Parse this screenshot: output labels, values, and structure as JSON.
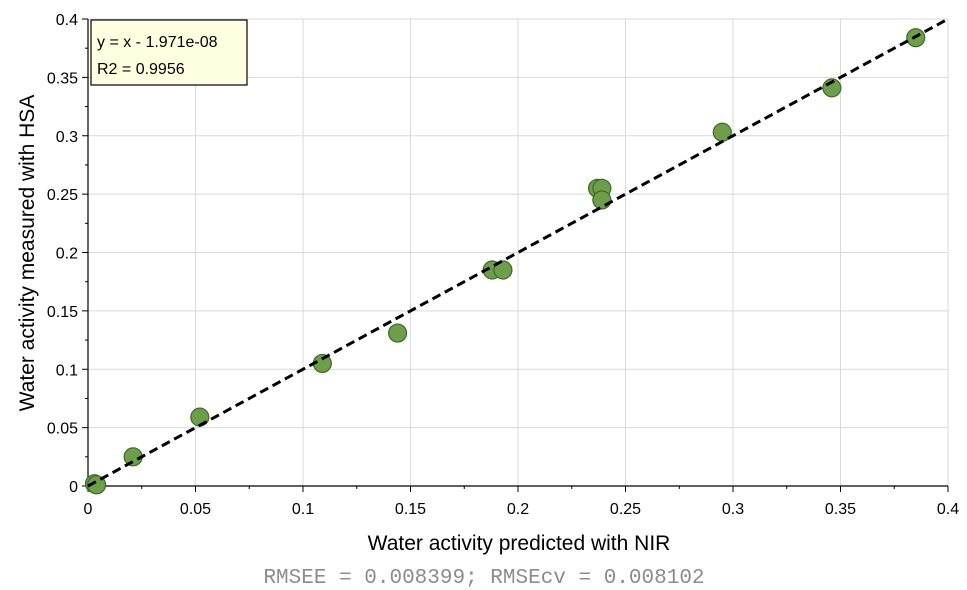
{
  "chart_data": {
    "type": "scatter",
    "xlabel": "Water activity predicted with NIR",
    "ylabel": "Water activity measured with HSA",
    "xlim": [
      0,
      0.4
    ],
    "ylim": [
      0,
      0.4
    ],
    "x_ticks": [
      "0",
      "0.05",
      "0.1",
      "0.15",
      "0.2",
      "0.25",
      "0.3",
      "0.35",
      "0.4"
    ],
    "y_ticks": [
      "0",
      "0.05",
      "0.1",
      "0.15",
      "0.2",
      "0.25",
      "0.3",
      "0.35",
      "0.4"
    ],
    "grid": true,
    "points": [
      {
        "x": 0.003,
        "y": 0.002
      },
      {
        "x": 0.004,
        "y": 0.001
      },
      {
        "x": 0.021,
        "y": 0.025
      },
      {
        "x": 0.052,
        "y": 0.059
      },
      {
        "x": 0.109,
        "y": 0.105
      },
      {
        "x": 0.144,
        "y": 0.131
      },
      {
        "x": 0.188,
        "y": 0.185
      },
      {
        "x": 0.193,
        "y": 0.185
      },
      {
        "x": 0.237,
        "y": 0.255
      },
      {
        "x": 0.239,
        "y": 0.255
      },
      {
        "x": 0.239,
        "y": 0.245
      },
      {
        "x": 0.295,
        "y": 0.303
      },
      {
        "x": 0.346,
        "y": 0.341
      },
      {
        "x": 0.385,
        "y": 0.384
      }
    ],
    "fit_line": {
      "slope": 1,
      "intercept": -1.971e-08
    },
    "annotation": {
      "equation": "y = x - 1.971e-08",
      "r2": "R2 = 0.9956",
      "placement": "top-left"
    },
    "footer": "RMSEE = 0.008399; RMSEcv = 0.008102",
    "colors": {
      "point_fill": "#6e9d4c",
      "point_stroke": "#3e6a28",
      "fit_line": "#000000",
      "annotation_bg": "#ffffe1",
      "grid": "#d9d9d9"
    }
  }
}
